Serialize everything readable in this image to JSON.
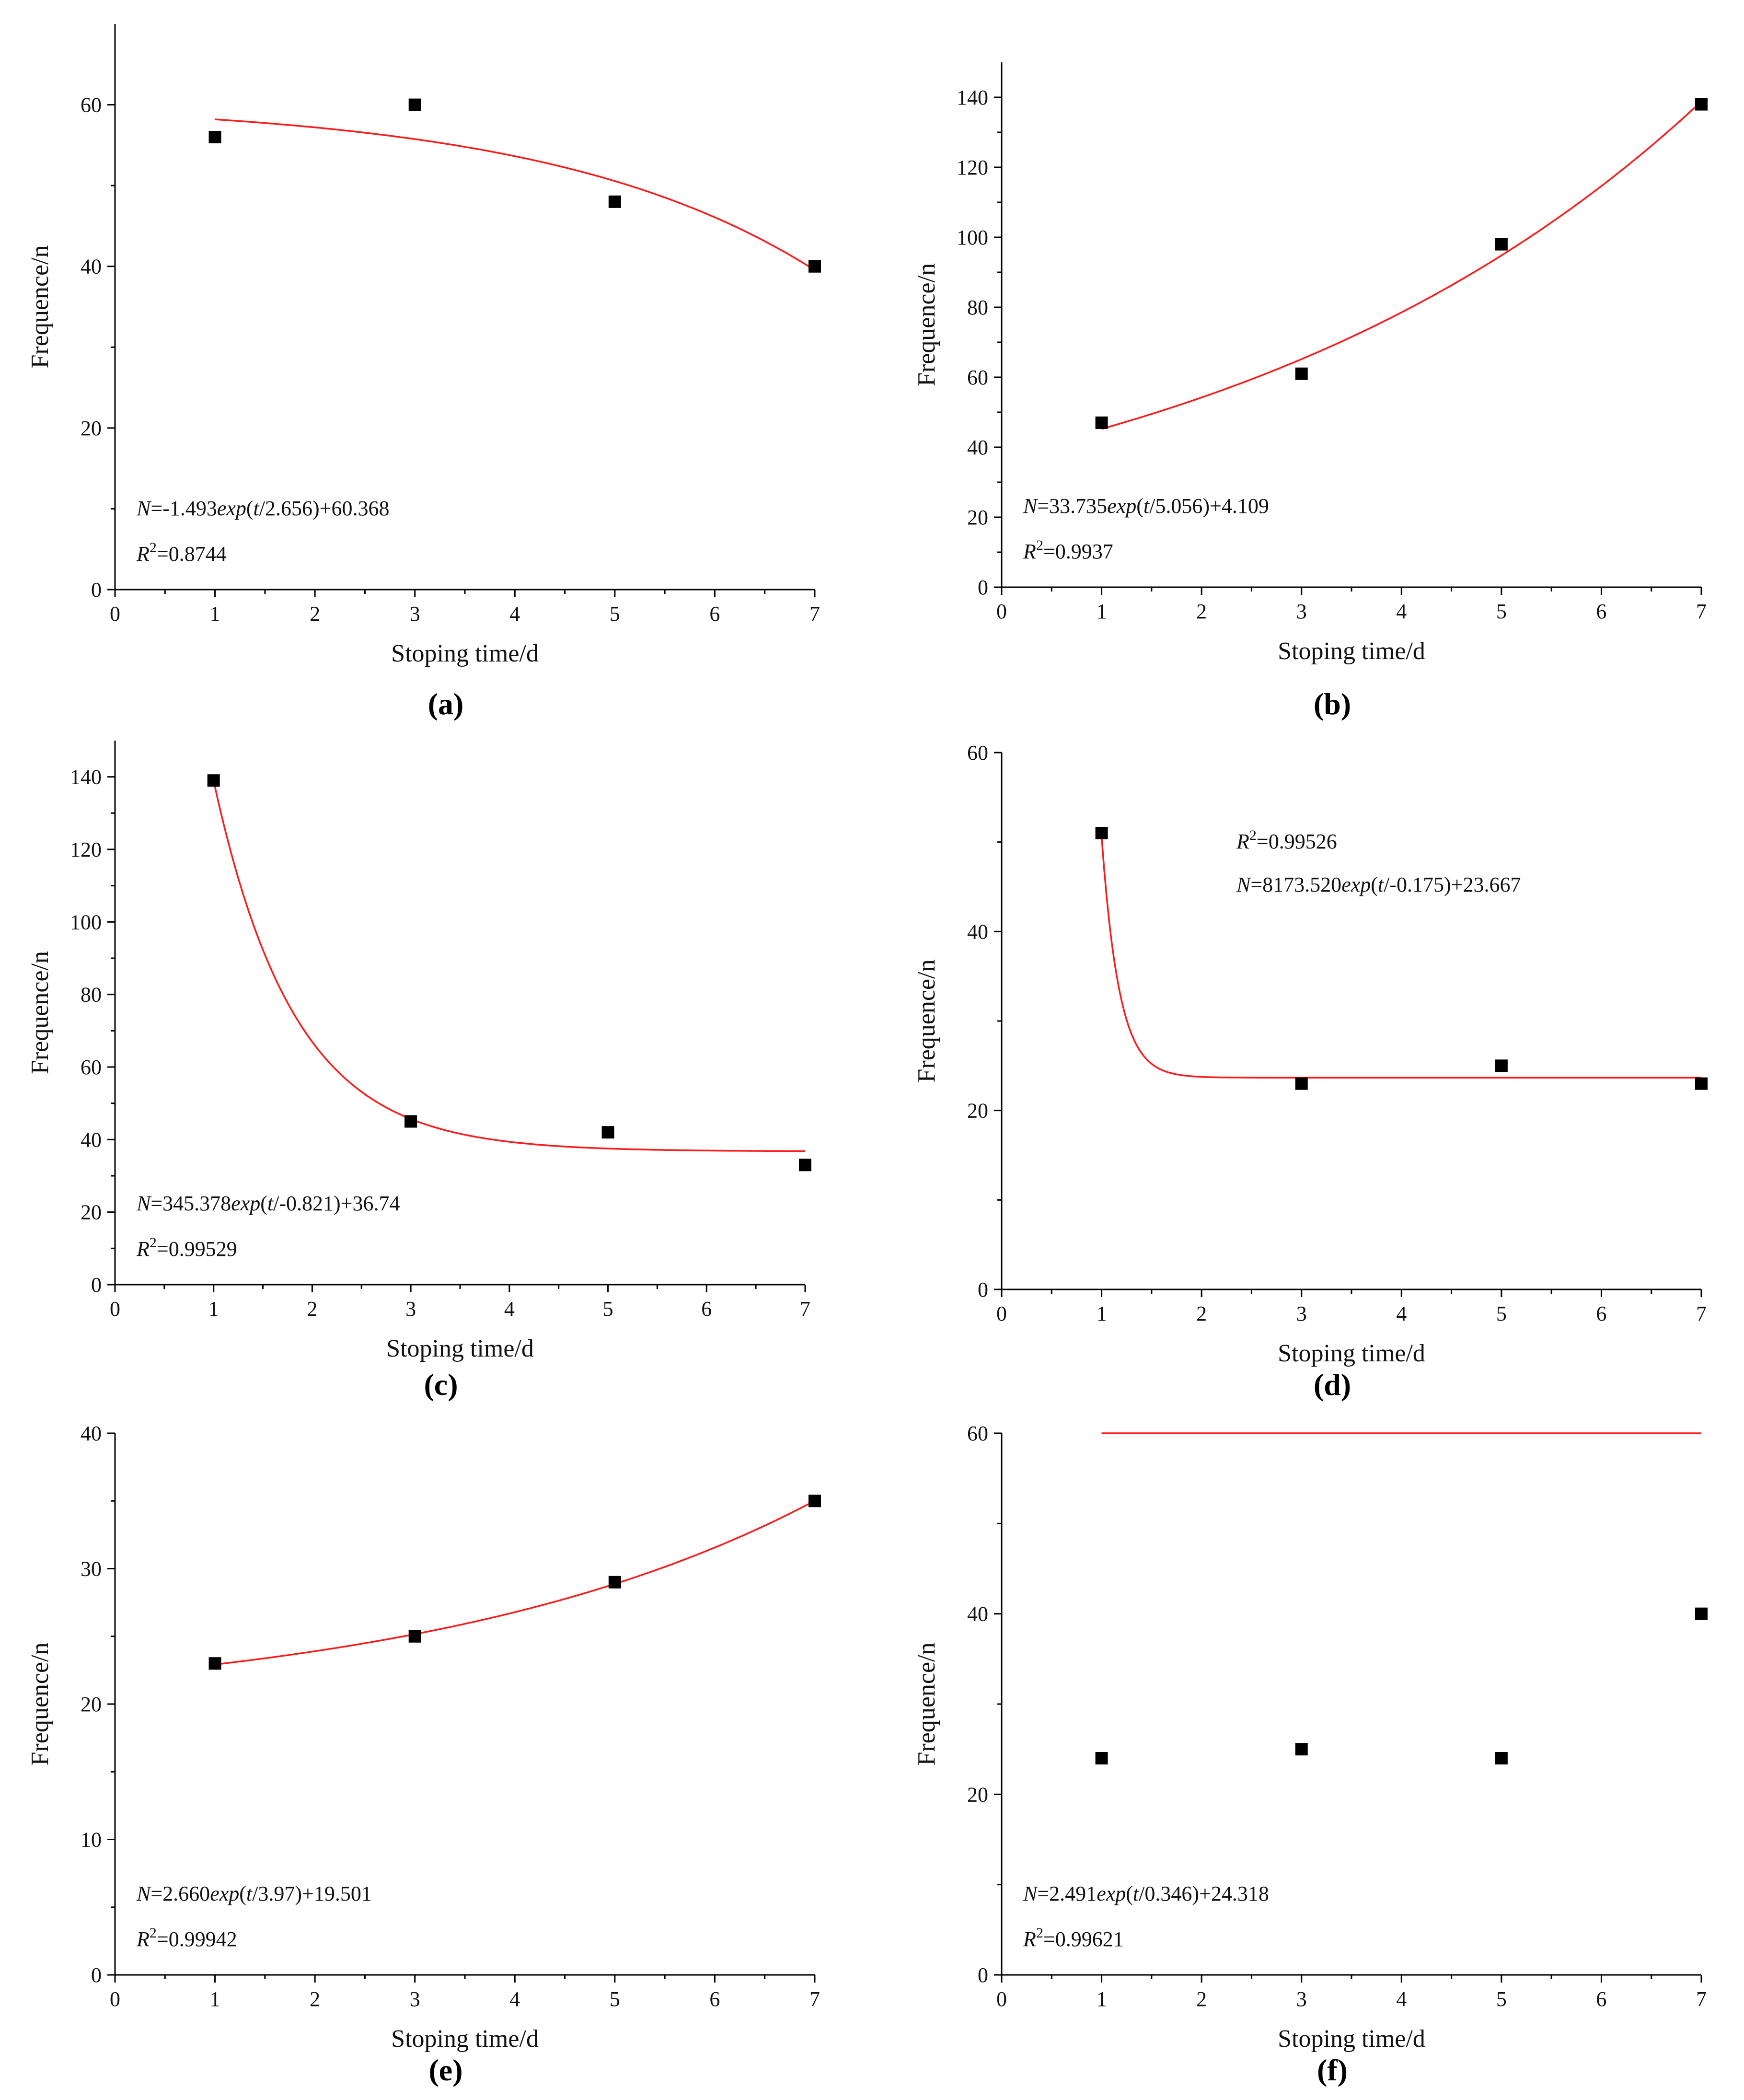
{
  "chart_data": [
    {
      "id": "a",
      "type": "scatter",
      "panel_label": "(a)",
      "xlabel": "Stoping time/d",
      "ylabel": "Frequence/n",
      "xlim": [
        0,
        7
      ],
      "ylim": [
        0,
        70
      ],
      "x_ticks": [
        "0",
        "1",
        "2",
        "3",
        "4",
        "5",
        "6",
        "7"
      ],
      "y_ticks": [
        "0",
        "20",
        "40",
        "60"
      ],
      "y_tick_values": [
        0,
        20,
        40,
        60
      ],
      "points": {
        "x": [
          1,
          3,
          5,
          7
        ],
        "y": [
          56,
          60,
          48,
          40
        ]
      },
      "fit": {
        "A": -1.493,
        "t0": 2.656,
        "y0": 60.368
      },
      "equation": "N=-1.493exp(t/2.656)+60.368",
      "equation_parts": {
        "N": "N",
        "eq1": "=-1.493",
        "exp": "exp",
        "lp": "(",
        "t": "t",
        "rest": "/2.656)+60.368"
      },
      "r2": {
        "R": "R",
        "sup": "2",
        "value": "=0.8744"
      },
      "text_pos": "lower-left"
    },
    {
      "id": "b",
      "type": "scatter",
      "panel_label": "(b)",
      "xlabel": "Stoping time/d",
      "ylabel": "Frequence/n",
      "xlim": [
        0,
        7
      ],
      "ylim": [
        0,
        150
      ],
      "x_ticks": [
        "0",
        "1",
        "2",
        "3",
        "4",
        "5",
        "6",
        "7"
      ],
      "y_ticks": [
        "0",
        "20",
        "40",
        "60",
        "80",
        "100",
        "120",
        "140"
      ],
      "y_tick_values": [
        0,
        20,
        40,
        60,
        80,
        100,
        120,
        140
      ],
      "points": {
        "x": [
          1,
          3,
          5,
          7
        ],
        "y": [
          47,
          61,
          98,
          138
        ]
      },
      "fit": {
        "A": 33.735,
        "t0": 5.056,
        "y0": 4.109
      },
      "equation": "N=33.735exp(t/5.056)+4.109",
      "equation_parts": {
        "N": "N",
        "eq1": "=33.735",
        "exp": "exp",
        "lp": "(",
        "t": "t",
        "rest": "/5.056)+4.109"
      },
      "r2": {
        "R": "R",
        "sup": "2",
        "value": "=0.9937"
      },
      "text_pos": "lower-left"
    },
    {
      "id": "c",
      "type": "scatter",
      "panel_label": "(c)",
      "xlabel": "Stoping time/d",
      "ylabel": "Frequence/n",
      "xlim": [
        0,
        7
      ],
      "ylim": [
        0,
        150
      ],
      "x_ticks": [
        "0",
        "1",
        "2",
        "3",
        "4",
        "5",
        "6",
        "7"
      ],
      "y_ticks": [
        "0",
        "20",
        "40",
        "60",
        "80",
        "100",
        "120",
        "140"
      ],
      "y_tick_values": [
        0,
        20,
        40,
        60,
        80,
        100,
        120,
        140
      ],
      "points": {
        "x": [
          1,
          3,
          5,
          7
        ],
        "y": [
          139,
          45,
          42,
          33
        ]
      },
      "fit": {
        "A": 345.378,
        "t0": -0.821,
        "y0": 36.74
      },
      "equation": "N=345.378exp(t/-0.821)+36.74",
      "equation_parts": {
        "N": "N",
        "eq1": "=345.378",
        "exp": "exp",
        "lp": "(",
        "t": "t",
        "rest": "/-0.821)+36.74"
      },
      "r2": {
        "R": "R",
        "sup": "2",
        "value": "=0.99529"
      },
      "text_pos": "lower-left"
    },
    {
      "id": "d",
      "type": "scatter",
      "panel_label": "(d)",
      "xlabel": "Stoping time/d",
      "ylabel": "Frequence/n",
      "xlim": [
        0,
        7
      ],
      "ylim": [
        0,
        60
      ],
      "x_ticks": [
        "0",
        "1",
        "2",
        "3",
        "4",
        "5",
        "6",
        "7"
      ],
      "y_ticks": [
        "0",
        "20",
        "40",
        "60"
      ],
      "y_tick_values": [
        0,
        20,
        40,
        60
      ],
      "points": {
        "x": [
          1,
          3,
          5,
          7
        ],
        "y": [
          51,
          23,
          25,
          23
        ]
      },
      "fit": {
        "A": 8173.52,
        "t0": -0.175,
        "y0": 23.667
      },
      "equation": "N=8173.520exp(t/-0.175)+23.667",
      "equation_parts": {
        "N": "N",
        "eq1": "=8173.520",
        "exp": "exp",
        "lp": "(",
        "t": "t",
        "rest": "/-0.175)+23.667"
      },
      "r2": {
        "R": "R",
        "sup": "2",
        "value": "=0.99526"
      },
      "text_pos": "upper-middle"
    },
    {
      "id": "e",
      "type": "scatter",
      "panel_label": "(e)",
      "xlabel": "Stoping time/d",
      "ylabel": "Frequence/n",
      "xlim": [
        0,
        7
      ],
      "ylim": [
        0,
        40
      ],
      "x_ticks": [
        "0",
        "1",
        "2",
        "3",
        "4",
        "5",
        "6",
        "7"
      ],
      "y_ticks": [
        "0",
        "10",
        "20",
        "30",
        "40"
      ],
      "y_tick_values": [
        0,
        10,
        20,
        30,
        40
      ],
      "points": {
        "x": [
          1,
          3,
          5,
          7
        ],
        "y": [
          23,
          25,
          29,
          35
        ]
      },
      "fit": {
        "A": 2.66,
        "t0": 3.97,
        "y0": 19.501
      },
      "equation": "N=2.660exp(t/3.97)+19.501",
      "equation_parts": {
        "N": "N",
        "eq1": "=2.660",
        "exp": "exp",
        "lp": "(",
        "t": "t",
        "rest": "/3.97)+19.501"
      },
      "r2": {
        "R": "R",
        "sup": "2",
        "value": "=0.99942"
      },
      "text_pos": "lower-left"
    },
    {
      "id": "f",
      "type": "scatter",
      "panel_label": "(f)",
      "xlabel": "Stoping time/d",
      "ylabel": "Frequence/n",
      "xlim": [
        0,
        7
      ],
      "ylim": [
        0,
        60
      ],
      "x_ticks": [
        "0",
        "1",
        "2",
        "3",
        "4",
        "5",
        "6",
        "7"
      ],
      "y_ticks": [
        "0",
        "20",
        "40",
        "60"
      ],
      "y_tick_values": [
        0,
        20,
        40,
        60
      ],
      "points": {
        "x": [
          1,
          3,
          5,
          7
        ],
        "y": [
          24,
          25,
          24,
          40
        ]
      },
      "fit": {
        "A": 2.491,
        "t0": 0.346,
        "y0": 24.318
      },
      "equation": "N=2.491exp(t/0.346)+24.318",
      "equation_parts": {
        "N": "N",
        "eq1": "=2.491",
        "exp": "exp",
        "lp": "(",
        "t": "t",
        "rest": "/0.346)+24.318"
      },
      "r2": {
        "R": "R",
        "sup": "2",
        "value": "=0.99621"
      },
      "text_pos": "lower-left"
    }
  ],
  "colors": {
    "fit_curve": "#ff1a1a",
    "points": "#000000",
    "axes": "#000000"
  }
}
